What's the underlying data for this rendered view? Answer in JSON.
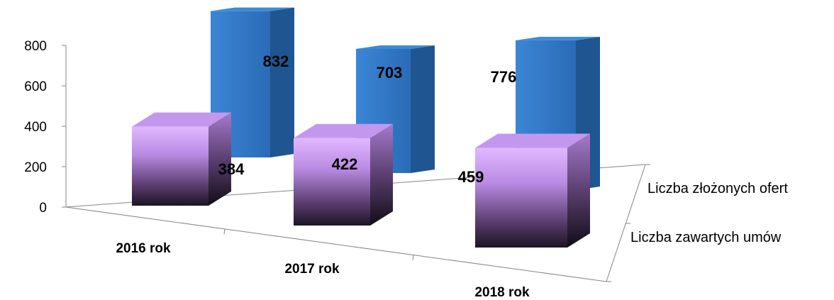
{
  "chart_data": {
    "type": "bar",
    "categories": [
      "2016 rok",
      "2017 rok",
      "2018 rok"
    ],
    "series": [
      {
        "name": "Liczba złożonych ofert",
        "values": [
          832,
          703,
          776
        ],
        "color": "#2f75c5"
      },
      {
        "name": "Liczba zawartych umów",
        "values": [
          384,
          422,
          459
        ],
        "color": "#c792f5"
      }
    ],
    "y_ticks": [
      "0",
      "200",
      "400",
      "600",
      "800"
    ],
    "ylim": [
      0,
      800
    ],
    "grid": false,
    "three_d": true,
    "legend": "none (series names shown on depth axis)"
  }
}
